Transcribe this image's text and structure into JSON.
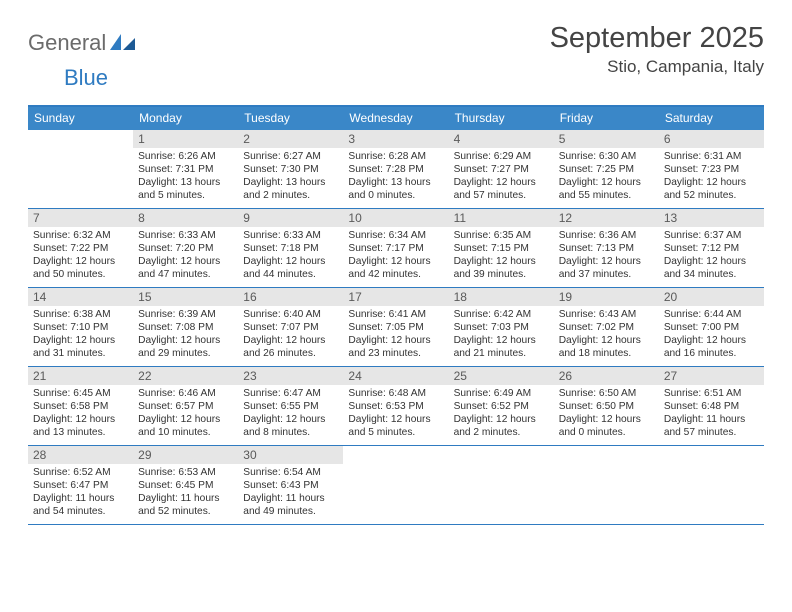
{
  "logo": {
    "word1": "General",
    "word2": "Blue"
  },
  "heading": {
    "month_title": "September 2025",
    "location": "Stio, Campania, Italy"
  },
  "colors": {
    "header_bg": "#3a87c8",
    "header_border": "#2f7bc1",
    "daynum_bg": "#e6e6e6",
    "text": "#333333",
    "logo_grey": "#6b6b6b",
    "logo_blue": "#2f7bc1"
  },
  "layout": {
    "columns": 7,
    "rows": 5
  },
  "day_labels": [
    "Sunday",
    "Monday",
    "Tuesday",
    "Wednesday",
    "Thursday",
    "Friday",
    "Saturday"
  ],
  "days": [
    {
      "n": "",
      "sunrise": "",
      "sunset": "",
      "daylight": ""
    },
    {
      "n": "1",
      "sunrise": "Sunrise: 6:26 AM",
      "sunset": "Sunset: 7:31 PM",
      "daylight": "Daylight: 13 hours and 5 minutes."
    },
    {
      "n": "2",
      "sunrise": "Sunrise: 6:27 AM",
      "sunset": "Sunset: 7:30 PM",
      "daylight": "Daylight: 13 hours and 2 minutes."
    },
    {
      "n": "3",
      "sunrise": "Sunrise: 6:28 AM",
      "sunset": "Sunset: 7:28 PM",
      "daylight": "Daylight: 13 hours and 0 minutes."
    },
    {
      "n": "4",
      "sunrise": "Sunrise: 6:29 AM",
      "sunset": "Sunset: 7:27 PM",
      "daylight": "Daylight: 12 hours and 57 minutes."
    },
    {
      "n": "5",
      "sunrise": "Sunrise: 6:30 AM",
      "sunset": "Sunset: 7:25 PM",
      "daylight": "Daylight: 12 hours and 55 minutes."
    },
    {
      "n": "6",
      "sunrise": "Sunrise: 6:31 AM",
      "sunset": "Sunset: 7:23 PM",
      "daylight": "Daylight: 12 hours and 52 minutes."
    },
    {
      "n": "7",
      "sunrise": "Sunrise: 6:32 AM",
      "sunset": "Sunset: 7:22 PM",
      "daylight": "Daylight: 12 hours and 50 minutes."
    },
    {
      "n": "8",
      "sunrise": "Sunrise: 6:33 AM",
      "sunset": "Sunset: 7:20 PM",
      "daylight": "Daylight: 12 hours and 47 minutes."
    },
    {
      "n": "9",
      "sunrise": "Sunrise: 6:33 AM",
      "sunset": "Sunset: 7:18 PM",
      "daylight": "Daylight: 12 hours and 44 minutes."
    },
    {
      "n": "10",
      "sunrise": "Sunrise: 6:34 AM",
      "sunset": "Sunset: 7:17 PM",
      "daylight": "Daylight: 12 hours and 42 minutes."
    },
    {
      "n": "11",
      "sunrise": "Sunrise: 6:35 AM",
      "sunset": "Sunset: 7:15 PM",
      "daylight": "Daylight: 12 hours and 39 minutes."
    },
    {
      "n": "12",
      "sunrise": "Sunrise: 6:36 AM",
      "sunset": "Sunset: 7:13 PM",
      "daylight": "Daylight: 12 hours and 37 minutes."
    },
    {
      "n": "13",
      "sunrise": "Sunrise: 6:37 AM",
      "sunset": "Sunset: 7:12 PM",
      "daylight": "Daylight: 12 hours and 34 minutes."
    },
    {
      "n": "14",
      "sunrise": "Sunrise: 6:38 AM",
      "sunset": "Sunset: 7:10 PM",
      "daylight": "Daylight: 12 hours and 31 minutes."
    },
    {
      "n": "15",
      "sunrise": "Sunrise: 6:39 AM",
      "sunset": "Sunset: 7:08 PM",
      "daylight": "Daylight: 12 hours and 29 minutes."
    },
    {
      "n": "16",
      "sunrise": "Sunrise: 6:40 AM",
      "sunset": "Sunset: 7:07 PM",
      "daylight": "Daylight: 12 hours and 26 minutes."
    },
    {
      "n": "17",
      "sunrise": "Sunrise: 6:41 AM",
      "sunset": "Sunset: 7:05 PM",
      "daylight": "Daylight: 12 hours and 23 minutes."
    },
    {
      "n": "18",
      "sunrise": "Sunrise: 6:42 AM",
      "sunset": "Sunset: 7:03 PM",
      "daylight": "Daylight: 12 hours and 21 minutes."
    },
    {
      "n": "19",
      "sunrise": "Sunrise: 6:43 AM",
      "sunset": "Sunset: 7:02 PM",
      "daylight": "Daylight: 12 hours and 18 minutes."
    },
    {
      "n": "20",
      "sunrise": "Sunrise: 6:44 AM",
      "sunset": "Sunset: 7:00 PM",
      "daylight": "Daylight: 12 hours and 16 minutes."
    },
    {
      "n": "21",
      "sunrise": "Sunrise: 6:45 AM",
      "sunset": "Sunset: 6:58 PM",
      "daylight": "Daylight: 12 hours and 13 minutes."
    },
    {
      "n": "22",
      "sunrise": "Sunrise: 6:46 AM",
      "sunset": "Sunset: 6:57 PM",
      "daylight": "Daylight: 12 hours and 10 minutes."
    },
    {
      "n": "23",
      "sunrise": "Sunrise: 6:47 AM",
      "sunset": "Sunset: 6:55 PM",
      "daylight": "Daylight: 12 hours and 8 minutes."
    },
    {
      "n": "24",
      "sunrise": "Sunrise: 6:48 AM",
      "sunset": "Sunset: 6:53 PM",
      "daylight": "Daylight: 12 hours and 5 minutes."
    },
    {
      "n": "25",
      "sunrise": "Sunrise: 6:49 AM",
      "sunset": "Sunset: 6:52 PM",
      "daylight": "Daylight: 12 hours and 2 minutes."
    },
    {
      "n": "26",
      "sunrise": "Sunrise: 6:50 AM",
      "sunset": "Sunset: 6:50 PM",
      "daylight": "Daylight: 12 hours and 0 minutes."
    },
    {
      "n": "27",
      "sunrise": "Sunrise: 6:51 AM",
      "sunset": "Sunset: 6:48 PM",
      "daylight": "Daylight: 11 hours and 57 minutes."
    },
    {
      "n": "28",
      "sunrise": "Sunrise: 6:52 AM",
      "sunset": "Sunset: 6:47 PM",
      "daylight": "Daylight: 11 hours and 54 minutes."
    },
    {
      "n": "29",
      "sunrise": "Sunrise: 6:53 AM",
      "sunset": "Sunset: 6:45 PM",
      "daylight": "Daylight: 11 hours and 52 minutes."
    },
    {
      "n": "30",
      "sunrise": "Sunrise: 6:54 AM",
      "sunset": "Sunset: 6:43 PM",
      "daylight": "Daylight: 11 hours and 49 minutes."
    },
    {
      "n": "",
      "sunrise": "",
      "sunset": "",
      "daylight": ""
    },
    {
      "n": "",
      "sunrise": "",
      "sunset": "",
      "daylight": ""
    },
    {
      "n": "",
      "sunrise": "",
      "sunset": "",
      "daylight": ""
    },
    {
      "n": "",
      "sunrise": "",
      "sunset": "",
      "daylight": ""
    }
  ]
}
